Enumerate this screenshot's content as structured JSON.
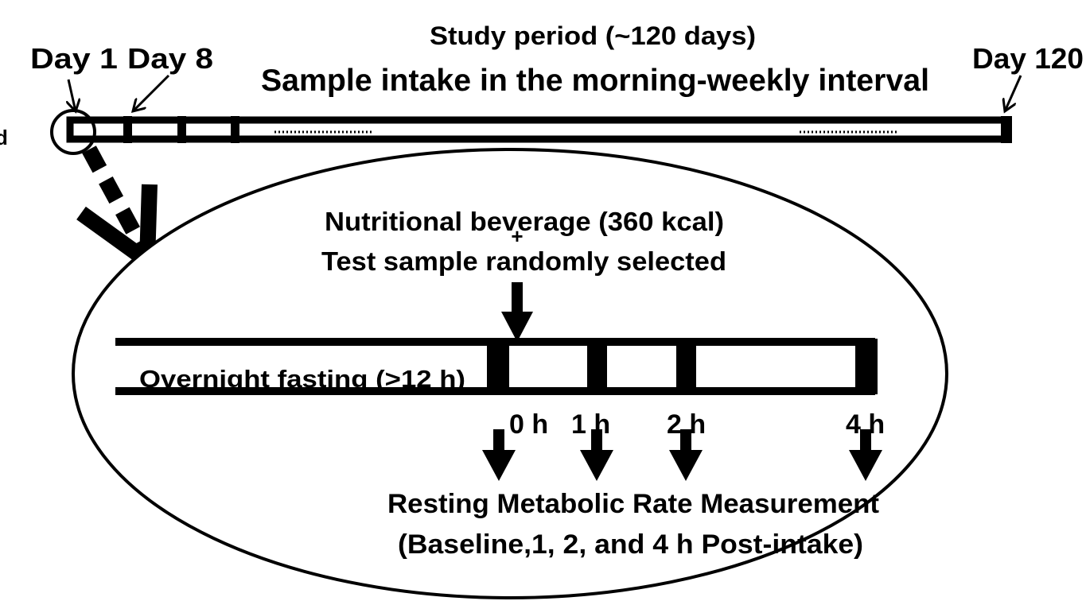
{
  "header": {
    "day_start": "Day 1",
    "day_second": "Day 8",
    "study_period": "Study period (~120 days)",
    "intake": "Sample intake in the morning-weekly interval",
    "day_end": "Day 120",
    "edge_text": "d"
  },
  "detail": {
    "beverage": "Nutritional beverage (360 kcal)",
    "plus": "+",
    "test_sample": "Test sample randomly selected",
    "fasting": "Overnight fasting (>12 h)",
    "time_points": [
      "0 h",
      "1 h",
      "2 h",
      "4 h"
    ],
    "measurement": "Resting Metabolic Rate Measurement",
    "measurement_detail": "(Baseline,1, 2, and 4 h Post-intake)"
  }
}
